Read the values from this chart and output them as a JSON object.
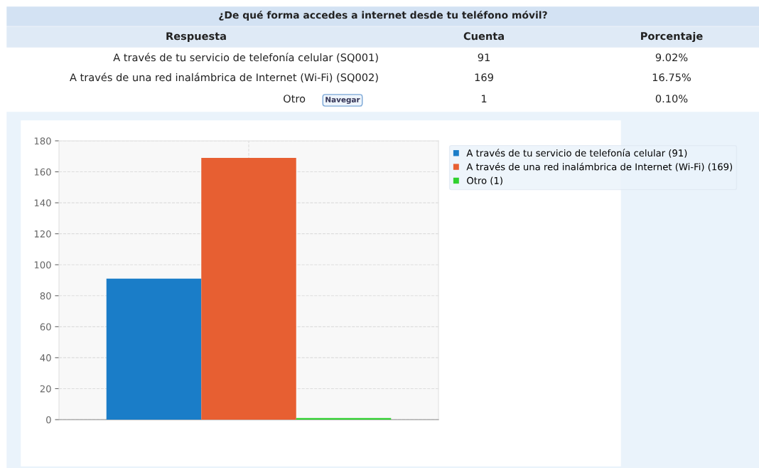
{
  "chart_data": {
    "type": "bar",
    "title": "¿De qué forma accedes a internet desde tu teléfono móvil?",
    "categories": [
      null
    ],
    "series": [
      {
        "name": "A través de tu servicio de telefonía celular (91)",
        "color": "#1a7dc8",
        "values": [
          91
        ]
      },
      {
        "name": "A través de una red inalámbrica de Internet (Wi-Fi) (169)",
        "color": "#e75f32",
        "values": [
          169
        ]
      },
      {
        "name": "Otro (1)",
        "color": "#2fd12f",
        "values": [
          1
        ]
      }
    ],
    "ylim": [
      0,
      180
    ],
    "yticks": [
      0,
      20,
      40,
      60,
      80,
      100,
      120,
      140,
      160,
      180
    ],
    "grid": true,
    "legend": "right",
    "annotations": [
      "Respuesta",
      "Cuenta",
      "Porcentaje",
      "A través de tu servicio de telefonía celular (SQ001)",
      "91",
      "9.02%",
      "A través de una red inalámbrica de Internet (Wi-Fi) (SQ002)",
      "169",
      "16.75%",
      "Otro",
      "1",
      "0.10%",
      "Navegar"
    ]
  }
}
